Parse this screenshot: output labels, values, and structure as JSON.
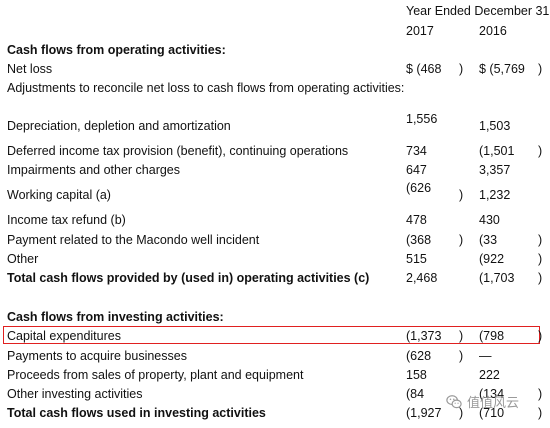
{
  "header": {
    "period": "Year Ended December 31",
    "col_2017": "2017",
    "col_2016": "2016"
  },
  "operating": {
    "title": "Cash flows from operating activities:",
    "net_loss": {
      "label": "Net loss",
      "v2017": "$ (468",
      "v2016": "$ (5,769"
    },
    "adjustments_label": "Adjustments to reconcile net loss to cash flows from operating activities:",
    "rows": [
      {
        "label": "Depreciation, depletion and amortization",
        "v2017": "1,556",
        "v2016": "1,503"
      },
      {
        "label": "Deferred income tax provision (benefit), continuing operations",
        "v2017": "734",
        "v2016": "(1,501"
      },
      {
        "label": "Impairments and other charges",
        "v2017": "647",
        "v2016": "3,357"
      },
      {
        "label": "Working capital (a)",
        "v2017": "(626",
        "v2016": "1,232"
      },
      {
        "label": "Income tax refund (b)",
        "v2017": "478",
        "v2016": "430"
      },
      {
        "label": "Payment related to the Macondo well incident",
        "v2017": "(368",
        "v2016": "(33"
      },
      {
        "label": "Other",
        "v2017": "515",
        "v2016": "(922"
      }
    ],
    "total": {
      "label": "Total cash flows provided by (used in) operating activities (c)",
      "v2017": "2,468",
      "v2016": "(1,703"
    }
  },
  "investing": {
    "title": "Cash flows from investing activities:",
    "rows": [
      {
        "label": "Capital expenditures",
        "v2017": "(1,373",
        "v2016": "(798"
      },
      {
        "label": "Payments to acquire businesses",
        "v2017": "(628",
        "v2016": "—"
      },
      {
        "label": "Proceeds from sales of property, plant and equipment",
        "v2017": "158",
        "v2016": "222"
      },
      {
        "label": "Other investing activities",
        "v2017": "(84",
        "v2016": "(134"
      }
    ],
    "total": {
      "label": "Total cash flows used in investing activities",
      "v2017": "(1,927",
      "v2016": "(710"
    }
  },
  "paren": ")",
  "watermark": {
    "text": "值值风云",
    "icon": "wechat-icon"
  },
  "colors": {
    "highlight": "#e02020",
    "text": "#111111",
    "watermark": "#9a9a9a"
  }
}
